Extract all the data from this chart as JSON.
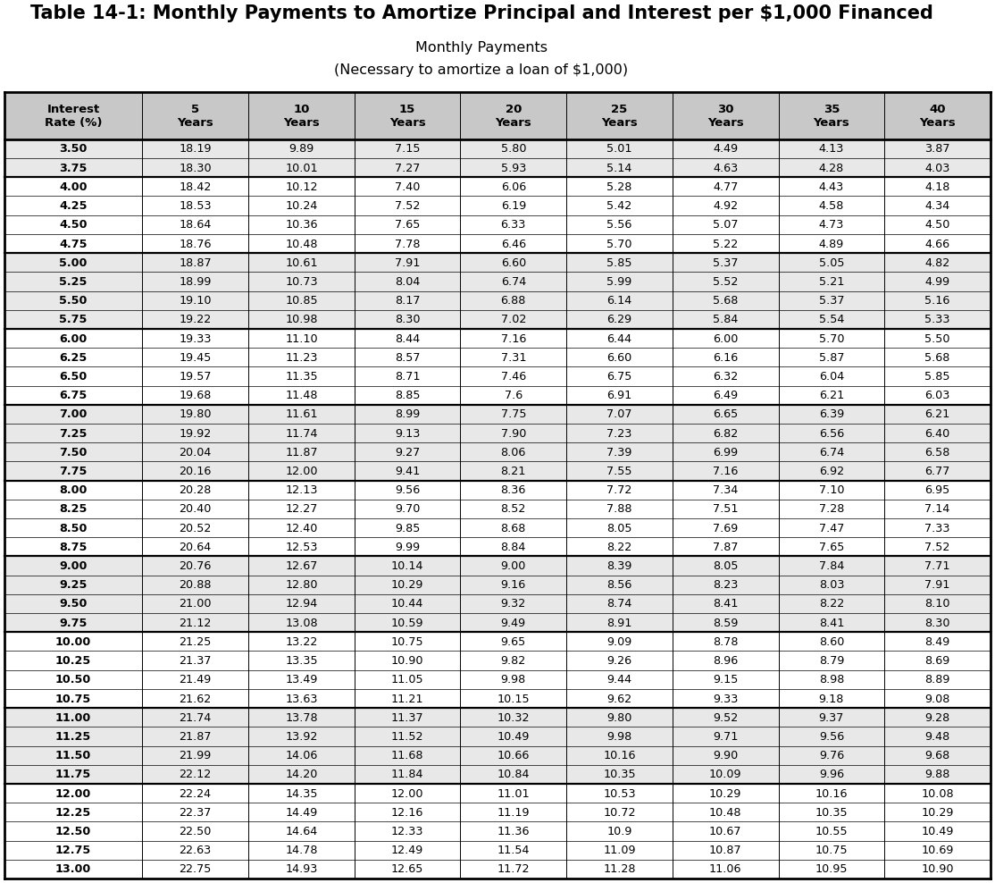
{
  "title": "Table 14-1: Monthly Payments to Amortize Principal and Interest per $1,000 Financed",
  "subtitle1": "Monthly Payments",
  "subtitle2": "(Necessary to amortize a loan of $1,000)",
  "col_headers_line1": [
    "Interest",
    "5",
    "10",
    "15",
    "20",
    "25",
    "30",
    "35",
    "40"
  ],
  "col_headers_line2": [
    "Rate (%)",
    "Years",
    "Years",
    "Years",
    "Years",
    "Years",
    "Years",
    "Years",
    "Years"
  ],
  "rows": [
    [
      "3.50",
      "18.19",
      "9.89",
      "7.15",
      "5.80",
      "5.01",
      "4.49",
      "4.13",
      "3.87"
    ],
    [
      "3.75",
      "18.30",
      "10.01",
      "7.27",
      "5.93",
      "5.14",
      "4.63",
      "4.28",
      "4.03"
    ],
    [
      "4.00",
      "18.42",
      "10.12",
      "7.40",
      "6.06",
      "5.28",
      "4.77",
      "4.43",
      "4.18"
    ],
    [
      "4.25",
      "18.53",
      "10.24",
      "7.52",
      "6.19",
      "5.42",
      "4.92",
      "4.58",
      "4.34"
    ],
    [
      "4.50",
      "18.64",
      "10.36",
      "7.65",
      "6.33",
      "5.56",
      "5.07",
      "4.73",
      "4.50"
    ],
    [
      "4.75",
      "18.76",
      "10.48",
      "7.78",
      "6.46",
      "5.70",
      "5.22",
      "4.89",
      "4.66"
    ],
    [
      "5.00",
      "18.87",
      "10.61",
      "7.91",
      "6.60",
      "5.85",
      "5.37",
      "5.05",
      "4.82"
    ],
    [
      "5.25",
      "18.99",
      "10.73",
      "8.04",
      "6.74",
      "5.99",
      "5.52",
      "5.21",
      "4.99"
    ],
    [
      "5.50",
      "19.10",
      "10.85",
      "8.17",
      "6.88",
      "6.14",
      "5.68",
      "5.37",
      "5.16"
    ],
    [
      "5.75",
      "19.22",
      "10.98",
      "8.30",
      "7.02",
      "6.29",
      "5.84",
      "5.54",
      "5.33"
    ],
    [
      "6.00",
      "19.33",
      "11.10",
      "8.44",
      "7.16",
      "6.44",
      "6.00",
      "5.70",
      "5.50"
    ],
    [
      "6.25",
      "19.45",
      "11.23",
      "8.57",
      "7.31",
      "6.60",
      "6.16",
      "5.87",
      "5.68"
    ],
    [
      "6.50",
      "19.57",
      "11.35",
      "8.71",
      "7.46",
      "6.75",
      "6.32",
      "6.04",
      "5.85"
    ],
    [
      "6.75",
      "19.68",
      "11.48",
      "8.85",
      "7.6",
      "6.91",
      "6.49",
      "6.21",
      "6.03"
    ],
    [
      "7.00",
      "19.80",
      "11.61",
      "8.99",
      "7.75",
      "7.07",
      "6.65",
      "6.39",
      "6.21"
    ],
    [
      "7.25",
      "19.92",
      "11.74",
      "9.13",
      "7.90",
      "7.23",
      "6.82",
      "6.56",
      "6.40"
    ],
    [
      "7.50",
      "20.04",
      "11.87",
      "9.27",
      "8.06",
      "7.39",
      "6.99",
      "6.74",
      "6.58"
    ],
    [
      "7.75",
      "20.16",
      "12.00",
      "9.41",
      "8.21",
      "7.55",
      "7.16",
      "6.92",
      "6.77"
    ],
    [
      "8.00",
      "20.28",
      "12.13",
      "9.56",
      "8.36",
      "7.72",
      "7.34",
      "7.10",
      "6.95"
    ],
    [
      "8.25",
      "20.40",
      "12.27",
      "9.70",
      "8.52",
      "7.88",
      "7.51",
      "7.28",
      "7.14"
    ],
    [
      "8.50",
      "20.52",
      "12.40",
      "9.85",
      "8.68",
      "8.05",
      "7.69",
      "7.47",
      "7.33"
    ],
    [
      "8.75",
      "20.64",
      "12.53",
      "9.99",
      "8.84",
      "8.22",
      "7.87",
      "7.65",
      "7.52"
    ],
    [
      "9.00",
      "20.76",
      "12.67",
      "10.14",
      "9.00",
      "8.39",
      "8.05",
      "7.84",
      "7.71"
    ],
    [
      "9.25",
      "20.88",
      "12.80",
      "10.29",
      "9.16",
      "8.56",
      "8.23",
      "8.03",
      "7.91"
    ],
    [
      "9.50",
      "21.00",
      "12.94",
      "10.44",
      "9.32",
      "8.74",
      "8.41",
      "8.22",
      "8.10"
    ],
    [
      "9.75",
      "21.12",
      "13.08",
      "10.59",
      "9.49",
      "8.91",
      "8.59",
      "8.41",
      "8.30"
    ],
    [
      "10.00",
      "21.25",
      "13.22",
      "10.75",
      "9.65",
      "9.09",
      "8.78",
      "8.60",
      "8.49"
    ],
    [
      "10.25",
      "21.37",
      "13.35",
      "10.90",
      "9.82",
      "9.26",
      "8.96",
      "8.79",
      "8.69"
    ],
    [
      "10.50",
      "21.49",
      "13.49",
      "11.05",
      "9.98",
      "9.44",
      "9.15",
      "8.98",
      "8.89"
    ],
    [
      "10.75",
      "21.62",
      "13.63",
      "11.21",
      "10.15",
      "9.62",
      "9.33",
      "9.18",
      "9.08"
    ],
    [
      "11.00",
      "21.74",
      "13.78",
      "11.37",
      "10.32",
      "9.80",
      "9.52",
      "9.37",
      "9.28"
    ],
    [
      "11.25",
      "21.87",
      "13.92",
      "11.52",
      "10.49",
      "9.98",
      "9.71",
      "9.56",
      "9.48"
    ],
    [
      "11.50",
      "21.99",
      "14.06",
      "11.68",
      "10.66",
      "10.16",
      "9.90",
      "9.76",
      "9.68"
    ],
    [
      "11.75",
      "22.12",
      "14.20",
      "11.84",
      "10.84",
      "10.35",
      "10.09",
      "9.96",
      "9.88"
    ],
    [
      "12.00",
      "22.24",
      "14.35",
      "12.00",
      "11.01",
      "10.53",
      "10.29",
      "10.16",
      "10.08"
    ],
    [
      "12.25",
      "22.37",
      "14.49",
      "12.16",
      "11.19",
      "10.72",
      "10.48",
      "10.35",
      "10.29"
    ],
    [
      "12.50",
      "22.50",
      "14.64",
      "12.33",
      "11.36",
      "10.9",
      "10.67",
      "10.55",
      "10.49"
    ],
    [
      "12.75",
      "22.63",
      "14.78",
      "12.49",
      "11.54",
      "11.09",
      "10.87",
      "10.75",
      "10.69"
    ],
    [
      "13.00",
      "22.75",
      "14.93",
      "12.65",
      "11.72",
      "11.28",
      "11.06",
      "10.95",
      "10.90"
    ]
  ],
  "group_starts": [
    0,
    2,
    6,
    10,
    14,
    18,
    22,
    26,
    30,
    34
  ],
  "shade_rows": [
    0,
    1,
    6,
    7,
    8,
    9,
    14,
    15,
    16,
    17,
    22,
    23,
    24,
    25,
    30,
    31,
    32,
    33
  ],
  "row_bg_light": "#e8e8e8",
  "row_bg_white": "#ffffff",
  "header_bg": "#c8c8c8",
  "title_fontsize": 15,
  "subtitle_fontsize": 11.5,
  "header_fontsize": 9.5,
  "cell_fontsize": 9.2
}
